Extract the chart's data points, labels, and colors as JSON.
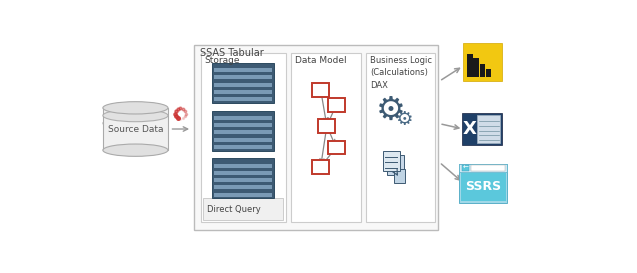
{
  "title": "SSAS Tabular",
  "text_color": "#444444",
  "dark_slate": "#3d5a73",
  "orange_red": "#c0392b",
  "power_bi_color": "#f2c811",
  "excel_dark": "#1f4068",
  "ssrs_blue": "#5bc8dc",
  "ssrs_bg": "#3ab8d0",
  "source_data_label": "Source Data",
  "storage_label": "Storage",
  "data_model_label": "Data Model",
  "business_logic_label": "Business Logic\n(Calculations)\nDAX",
  "direct_query_label": "Direct Query",
  "ssrs_label": "SSRS",
  "arrow_color": "#999999",
  "box_bg": "#ffffff",
  "outer_box_bg": "#f8f8f8",
  "outer_box_ec": "#bbbbbb",
  "inner_box_ec": "#cccccc",
  "cyl_body": "#f0f0f0",
  "cyl_ec": "#aaaaaa",
  "cyl_top": "#e0e0e0",
  "loading_color": "#cc3333"
}
